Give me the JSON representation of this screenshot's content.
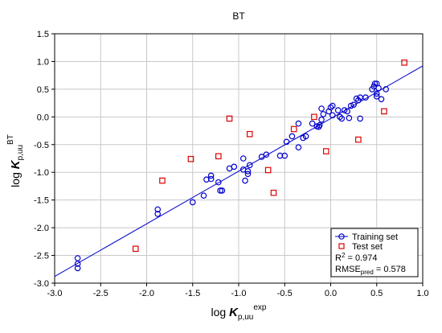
{
  "chart_data": {
    "type": "scatter",
    "title": "BT",
    "xlabel": {
      "main": "log ",
      "var": "K",
      "sub": "p,uu",
      "sup": "exp"
    },
    "ylabel": {
      "main": "log ",
      "var": "K",
      "sub": "p,uu",
      "sup": "BT"
    },
    "xlim": [
      -3.0,
      1.0
    ],
    "ylim": [
      -3.0,
      1.5
    ],
    "xticks": [
      "-3.0",
      "-2.5",
      "-2.0",
      "-1.5",
      "-1.0",
      "-0.5",
      "0.0",
      "0.5",
      "1.0"
    ],
    "yticks": [
      "-3.0",
      "-2.5",
      "-2.0",
      "-1.5",
      "-1.0",
      "-0.5",
      "0.0",
      "0.5",
      "1.0",
      "1.5"
    ],
    "grid": true,
    "legend_position": "bottom-right",
    "fit_line": {
      "x": [
        -3.0,
        1.0
      ],
      "y": [
        -2.88,
        0.92
      ]
    },
    "series": [
      {
        "name": "Training set",
        "marker": "circle",
        "color": "#0000cc",
        "points": [
          [
            -2.75,
            -2.55
          ],
          [
            -2.75,
            -2.65
          ],
          [
            -2.75,
            -2.73
          ],
          [
            -1.88,
            -1.67
          ],
          [
            -1.88,
            -1.75
          ],
          [
            -1.5,
            -1.54
          ],
          [
            -1.38,
            -1.42
          ],
          [
            -1.35,
            -1.13
          ],
          [
            -1.3,
            -1.06
          ],
          [
            -1.3,
            -1.12
          ],
          [
            -1.22,
            -1.18
          ],
          [
            -1.2,
            -1.33
          ],
          [
            -1.18,
            -1.33
          ],
          [
            -1.1,
            -0.93
          ],
          [
            -1.05,
            -0.9
          ],
          [
            -0.95,
            -0.75
          ],
          [
            -0.95,
            -0.95
          ],
          [
            -0.9,
            -1.03
          ],
          [
            -0.9,
            -0.98
          ],
          [
            -0.93,
            -1.15
          ],
          [
            -0.88,
            -0.87
          ],
          [
            -0.75,
            -0.72
          ],
          [
            -0.7,
            -0.68
          ],
          [
            -0.55,
            -0.7
          ],
          [
            -0.5,
            -0.7
          ],
          [
            -0.48,
            -0.45
          ],
          [
            -0.42,
            -0.35
          ],
          [
            -0.35,
            -0.55
          ],
          [
            -0.35,
            -0.12
          ],
          [
            -0.3,
            -0.38
          ],
          [
            -0.27,
            -0.35
          ],
          [
            -0.2,
            -0.12
          ],
          [
            -0.15,
            -0.17
          ],
          [
            -0.12,
            -0.15
          ],
          [
            -0.13,
            -0.18
          ],
          [
            -0.1,
            0.15
          ],
          [
            -0.1,
            -0.05
          ],
          [
            -0.08,
            0.05
          ],
          [
            -0.02,
            0.1
          ],
          [
            0.0,
            0.17
          ],
          [
            0.02,
            0.2
          ],
          [
            0.02,
            0.03
          ],
          [
            0.08,
            0.12
          ],
          [
            0.1,
            0.0
          ],
          [
            0.12,
            -0.03
          ],
          [
            0.15,
            0.12
          ],
          [
            0.18,
            0.1
          ],
          [
            0.2,
            -0.02
          ],
          [
            0.22,
            0.2
          ],
          [
            0.25,
            0.22
          ],
          [
            0.28,
            0.33
          ],
          [
            0.3,
            0.3
          ],
          [
            0.32,
            0.35
          ],
          [
            0.32,
            -0.03
          ],
          [
            0.38,
            0.35
          ],
          [
            0.45,
            0.5
          ],
          [
            0.47,
            0.55
          ],
          [
            0.48,
            0.6
          ],
          [
            0.5,
            0.6
          ],
          [
            0.5,
            0.42
          ],
          [
            0.5,
            0.37
          ],
          [
            0.52,
            0.52
          ],
          [
            0.55,
            0.32
          ],
          [
            0.6,
            0.5
          ]
        ]
      },
      {
        "name": "Test set",
        "marker": "square",
        "color": "#dd0000",
        "points": [
          [
            -2.12,
            -2.38
          ],
          [
            -1.83,
            -1.15
          ],
          [
            -1.52,
            -0.76
          ],
          [
            -1.22,
            -0.71
          ],
          [
            -1.1,
            -0.03
          ],
          [
            -0.88,
            -0.31
          ],
          [
            -0.68,
            -0.96
          ],
          [
            -0.62,
            -1.37
          ],
          [
            -0.4,
            -0.22
          ],
          [
            -0.18,
            0.0
          ],
          [
            -0.05,
            -0.62
          ],
          [
            0.3,
            -0.41
          ],
          [
            0.58,
            0.1
          ],
          [
            0.8,
            0.98
          ]
        ]
      }
    ],
    "annotations": {
      "r2": {
        "prefix": "R",
        "sup": "2",
        "suffix": " = 0.974"
      },
      "rmse": {
        "prefix": "RMSE",
        "sub": "pred",
        "suffix": " = 0.578"
      }
    }
  }
}
